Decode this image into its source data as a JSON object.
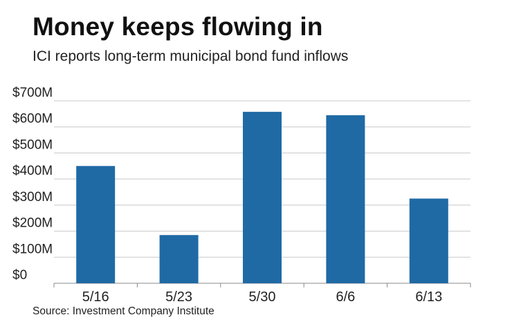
{
  "title": "Money keeps flowing in",
  "subtitle": "ICI reports long-term municipal bond fund inflows",
  "source": "Source: Investment Company Institute",
  "colors": {
    "bar": "#1f6aa5",
    "grid": "#c8c8c8",
    "axis": "#888888"
  },
  "chart_data": {
    "type": "bar",
    "title": "Money keeps flowing in",
    "subtitle": "ICI reports long-term municipal bond fund inflows",
    "xlabel": "",
    "ylabel": "",
    "categories": [
      "5/16",
      "5/23",
      "5/30",
      "6/6",
      "6/13"
    ],
    "values": [
      450,
      185,
      658,
      645,
      325
    ],
    "unit": "$M",
    "ylim": [
      0,
      700
    ],
    "yticks": [
      0,
      100,
      200,
      300,
      400,
      500,
      600,
      700
    ],
    "ytick_labels": [
      "$0",
      "$100M",
      "$200M",
      "$300M",
      "$400M",
      "$500M",
      "$600M",
      "$700M"
    ],
    "grid": true,
    "legend": "none"
  }
}
